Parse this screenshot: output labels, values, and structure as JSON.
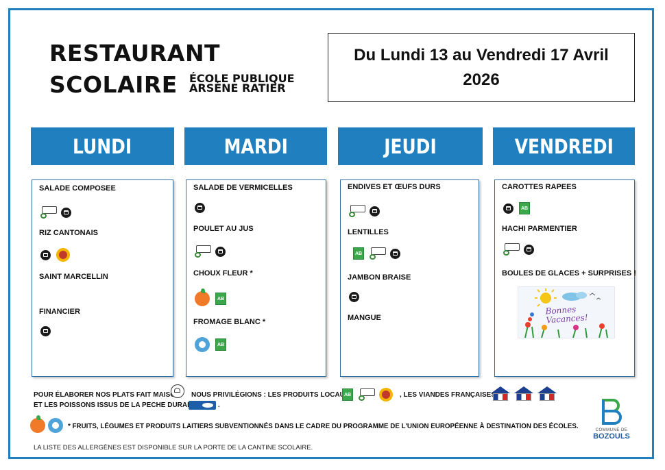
{
  "header": {
    "logo_line1": "RESTAURANT",
    "logo_line2": "SCOLAIRE",
    "logo_sub1": "ÉCOLE PUBLIQUE",
    "logo_sub2": "ARSÈNE RATIER",
    "date_range": "Du Lundi 13 au Vendredi 17 Avril 2026"
  },
  "days": [
    {
      "name": "LUNDI",
      "dishes": [
        {
          "label": "SALADE COMPOSEE",
          "icons": [
            "local-produce-icon",
            "homemade-icon"
          ]
        },
        {
          "label": "RIZ CANTONAIS",
          "icons": [
            "homemade-icon",
            "aop-label-icon"
          ]
        },
        {
          "label": "SAINT MARCELLIN",
          "icons": []
        },
        {
          "label": "FINANCIER",
          "icons": [
            "homemade-icon"
          ]
        }
      ]
    },
    {
      "name": "MARDI",
      "dishes": [
        {
          "label": "SALADE DE VERMICELLES",
          "icons": [
            "homemade-icon"
          ]
        },
        {
          "label": "POULET AU JUS",
          "icons": [
            "local-produce-icon",
            "homemade-icon"
          ]
        },
        {
          "label": "CHOUX FLEUR *",
          "icons": [
            "eu-fruit-program-icon",
            "organic-ab-icon"
          ]
        },
        {
          "label": "FROMAGE BLANC *",
          "icons": [
            "eu-milk-program-icon",
            "organic-ab-icon"
          ]
        }
      ]
    },
    {
      "name": "JEUDI",
      "dishes": [
        {
          "label": "ENDIVES ET ŒUFS DURS",
          "icons": [
            "local-produce-icon",
            "homemade-icon"
          ]
        },
        {
          "label": "LENTILLES",
          "icons": [
            "organic-ab-icon",
            "local-produce-icon",
            "homemade-icon"
          ]
        },
        {
          "label": "JAMBON BRAISE",
          "icons": [
            "homemade-icon"
          ]
        },
        {
          "label": "MANGUE",
          "icons": []
        }
      ]
    },
    {
      "name": "VENDREDI",
      "dishes": [
        {
          "label": "CAROTTES RAPEES",
          "icons": [
            "homemade-icon",
            "organic-ab-icon"
          ]
        },
        {
          "label": "HACHI PARMENTIER",
          "icons": [
            "local-produce-icon",
            "homemade-icon"
          ]
        },
        {
          "label": "BOULES DE GLACES + SURPRISES !",
          "icons": []
        }
      ],
      "illustration_text": "Bonnes Vacances!"
    }
  ],
  "legend": {
    "line1_a": "POUR ÉLABORER NOS PLATS FAIT MAISON",
    "line1_b": "NOUS PRIVILÉGIONS : LES PRODUITS LOCAUX",
    "line1_c": ", LES VIANDES FRANÇAISES",
    "line2": "ET LES POISSONS ISSUS DE LA PECHE DURABLE",
    "line2_end": ".",
    "eu_note": "* FRUITS, LÉGUMES ET PRODUITS LAITIERS SUBVENTIONNÉS DANS LE CADRE DU PROGRAMME DE L'UNION EUROPÉENNE À DESTINATION DES ÉCOLES.",
    "allergens": "LA LISTE DES ALLERGÈNES EST DISPONIBLE SUR LA PORTE DE LA CANTINE SCOLAIRE."
  },
  "commune": {
    "small": "COMMUNE DE",
    "name": "BOZOULS"
  },
  "colors": {
    "accent": "#1f7fbf",
    "organic": "#3aa84a"
  }
}
